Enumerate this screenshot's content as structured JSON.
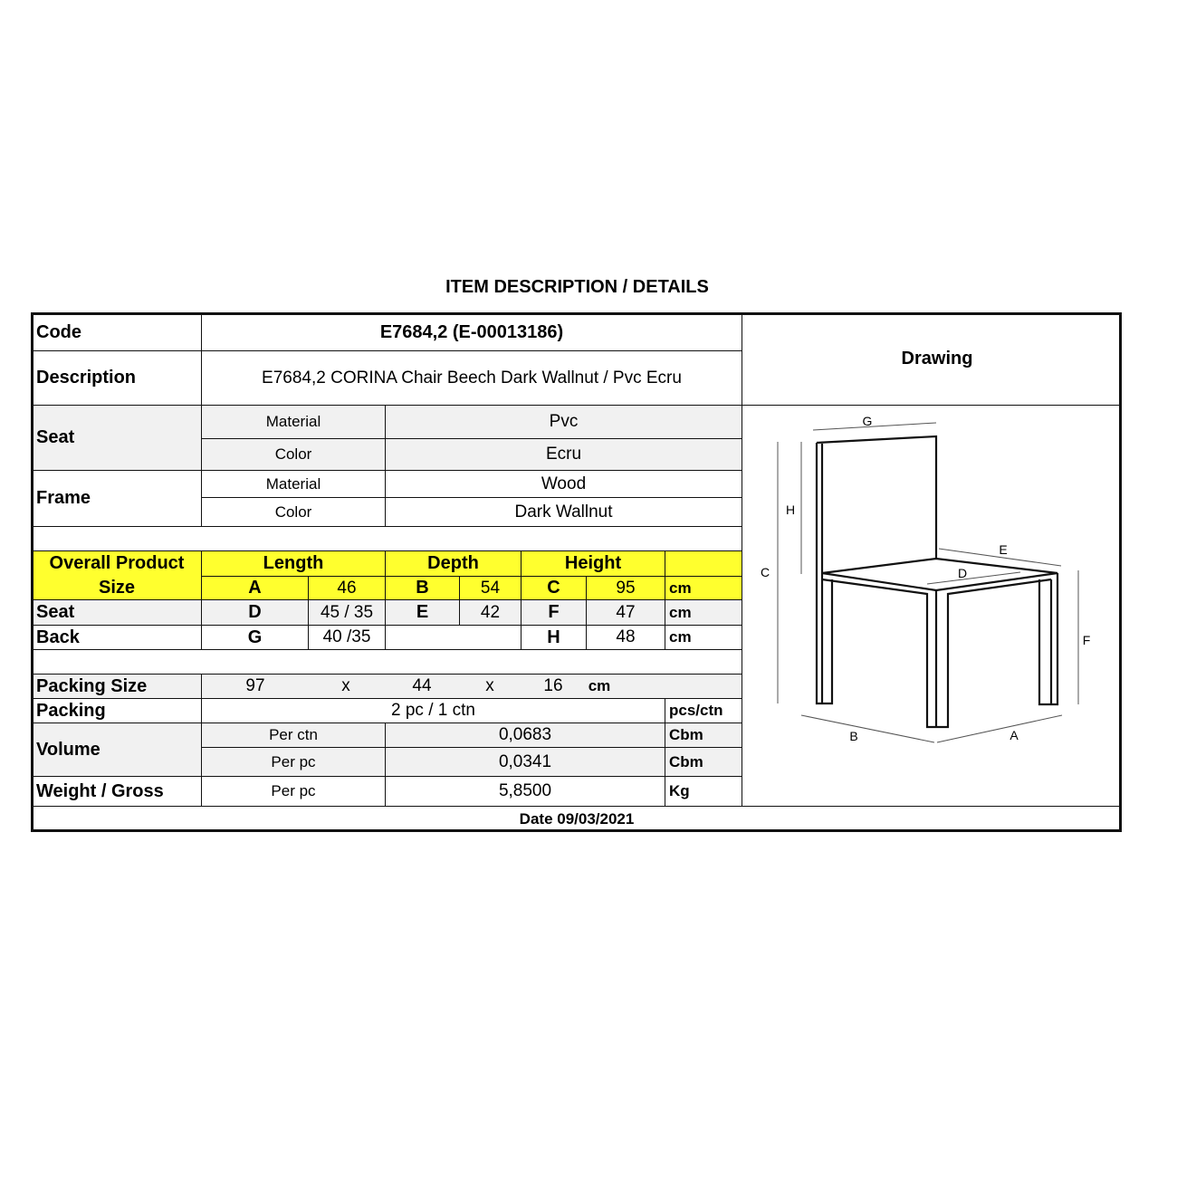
{
  "title": "ITEM DESCRIPTION / DETAILS",
  "code": {
    "label": "Code",
    "value": "E7684,2 (E-00013186)"
  },
  "description": {
    "label": "Description",
    "value": "E7684,2 CORINA Chair Beech Dark Wallnut / Pvc Ecru"
  },
  "drawing": {
    "label": "Drawing",
    "dimension_labels": [
      "G",
      "H",
      "C",
      "E",
      "D",
      "F",
      "B",
      "A"
    ]
  },
  "seat": {
    "label": "Seat",
    "material_label": "Material",
    "material": "Pvc",
    "color_label": "Color",
    "color": "Ecru"
  },
  "frame": {
    "label": "Frame",
    "material_label": "Material",
    "material": "Wood",
    "color_label": "Color",
    "color": "Dark Wallnut"
  },
  "size": {
    "overall_label": "Overall Product Size",
    "headers": {
      "length": "Length",
      "depth": "Depth",
      "height": "Height"
    },
    "overall": {
      "a_label": "A",
      "a": "46",
      "b_label": "B",
      "b": "54",
      "c_label": "C",
      "c": "95",
      "unit": "cm"
    },
    "seat": {
      "label": "Seat",
      "d_label": "D",
      "d": "45 / 35",
      "e_label": "E",
      "e": "42",
      "f_label": "F",
      "f": "47",
      "unit": "cm"
    },
    "back": {
      "label": "Back",
      "g_label": "G",
      "g": "40 /35",
      "h_label": "H",
      "h": "48",
      "unit": "cm"
    }
  },
  "packing_size": {
    "label": "Packing Size",
    "l": "97",
    "x1": "x",
    "w": "44",
    "x2": "x",
    "h": "16",
    "unit": "cm"
  },
  "packing": {
    "label": "Packing",
    "value": "2 pc / 1 ctn",
    "unit": "pcs/ctn"
  },
  "volume": {
    "label": "Volume",
    "per_ctn_label": "Per ctn",
    "per_ctn": "0,0683",
    "per_ctn_unit": "Cbm",
    "per_pc_label": "Per pc",
    "per_pc": "0,0341",
    "per_pc_unit": "Cbm"
  },
  "weight": {
    "label": "Weight / Gross",
    "per_pc_label": "Per pc",
    "per_pc": "5,8500",
    "unit": "Kg"
  },
  "date": "Date 09/03/2021",
  "colors": {
    "highlight": "#ffff2e",
    "shade": "#f1f1f1",
    "border": "#111111"
  }
}
